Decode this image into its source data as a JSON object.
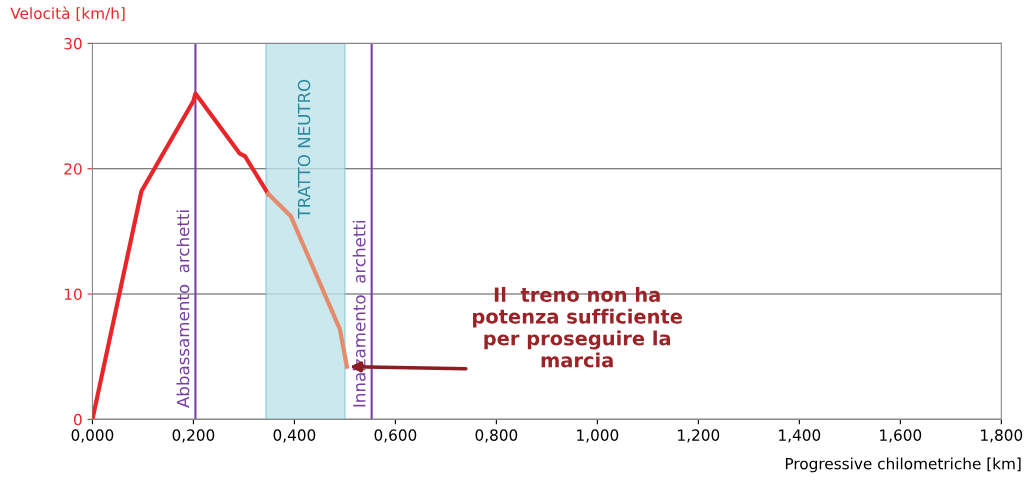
{
  "chart_data": {
    "type": "line",
    "ylabel": "Velocità [km/h]",
    "xlabel": "Progressive chilometriche [km]",
    "series": [
      {
        "color": "#e8262a",
        "x": [
          0,
          0.097,
          0.2,
          0.204,
          0.292,
          0.302,
          0.348
        ],
        "values": [
          0,
          18.2,
          25.4,
          26,
          21.2,
          21,
          18
        ]
      },
      {
        "color": "#e58a6a",
        "x": [
          0.348,
          0.393,
          0.49,
          0.504
        ],
        "values": [
          18,
          16.2,
          7.2,
          4.2
        ]
      }
    ],
    "xlim": [
      0,
      1.8
    ],
    "ylim": [
      0,
      30
    ],
    "xticks": [
      {
        "value": 0,
        "label": "0,000"
      },
      {
        "value": 0.2,
        "label": "0,200"
      },
      {
        "value": 0.4,
        "label": "0,400"
      },
      {
        "value": 0.6,
        "label": "0,600"
      },
      {
        "value": 0.8,
        "label": "0,800"
      },
      {
        "value": 1.0,
        "label": "1,000"
      },
      {
        "value": 1.2,
        "label": "1,200"
      },
      {
        "value": 1.4,
        "label": "1,400"
      },
      {
        "value": 1.6,
        "label": "1,600"
      },
      {
        "value": 1.8,
        "label": "1,800"
      }
    ],
    "yticks": [
      0,
      10,
      20,
      30
    ],
    "grid": "y",
    "legend": false,
    "marker": "none",
    "line_style": "solid",
    "ref_lines": [
      {
        "axis": "x",
        "value": 0.204,
        "label": "Abbassamento  archetti",
        "color": "#7a3fa6"
      },
      {
        "axis": "x",
        "value": 0.553,
        "label": "Innalzamento  archetti",
        "color": "#7a3fa6"
      }
    ],
    "bands": [
      {
        "axis": "x",
        "from": 0.344,
        "to": 0.5,
        "label": "TRATTO NEUTRO",
        "color": "#bfe3ea"
      }
    ],
    "annotations": [
      {
        "text": "Il  treno non ha\npotenza sufficiente\nper proseguire la\nmarcia",
        "x": 0.504,
        "y": 4.2
      }
    ]
  }
}
